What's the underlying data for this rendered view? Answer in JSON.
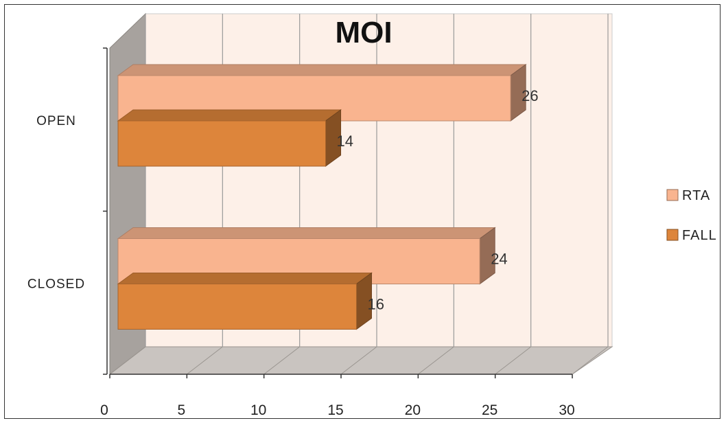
{
  "chart_data": {
    "type": "bar",
    "orientation": "horizontal",
    "title": "MOI",
    "categories": [
      "OPEN",
      "CLOSED"
    ],
    "series": [
      {
        "name": "RTA",
        "values": [
          26,
          24
        ],
        "color": "#f9b48f"
      },
      {
        "name": "FALL",
        "values": [
          14,
          16
        ],
        "color": "#dd853b"
      }
    ],
    "xlim": [
      0,
      30
    ],
    "x_ticks": [
      "0",
      "5",
      "10",
      "15",
      "20",
      "25",
      "30"
    ],
    "grid": true,
    "legend_position": "right",
    "data_labels": true,
    "three_d": true
  }
}
